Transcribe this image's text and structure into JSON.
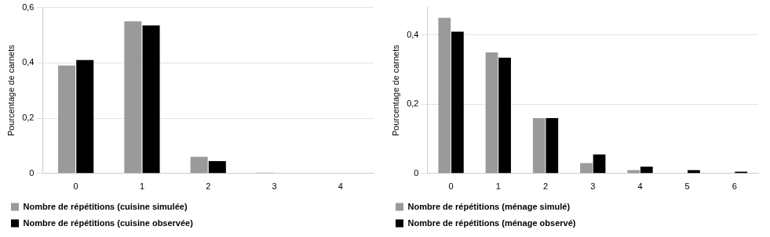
{
  "chart_data": [
    {
      "type": "bar",
      "y_label": "Pourcentage de carnets",
      "categories": [
        "0",
        "1",
        "2",
        "3",
        "4"
      ],
      "series": [
        {
          "name": "Nombre de répétitions (cuisine simulée)",
          "color": "#9a9a9a",
          "values": [
            0.39,
            0.55,
            0.06,
            0.003,
            0
          ]
        },
        {
          "name": "Nombre de répétitions (cuisine observée)",
          "color": "#000000",
          "values": [
            0.41,
            0.535,
            0.045,
            0,
            0
          ]
        }
      ],
      "ylim": [
        0,
        0.6
      ],
      "yticks": [
        0,
        {
          "value": 0.2,
          "label": "0,2"
        },
        {
          "value": 0.4,
          "label": "0,4"
        },
        {
          "value": 0.6,
          "label": "0,6"
        }
      ],
      "grid": true,
      "legend": "bottom"
    },
    {
      "type": "bar",
      "y_label": "Pourcentage de carnets",
      "categories": [
        "0",
        "1",
        "2",
        "3",
        "4",
        "5",
        "6"
      ],
      "series": [
        {
          "name": "Nombre de répétitions (ménage simulé)",
          "color": "#9a9a9a",
          "values": [
            0.45,
            0.35,
            0.16,
            0.03,
            0.01,
            0,
            0
          ]
        },
        {
          "name": "Nombre de répétitions (ménage observé)",
          "color": "#000000",
          "values": [
            0.41,
            0.335,
            0.16,
            0.055,
            0.02,
            0.01,
            0.005
          ]
        }
      ],
      "ylim": [
        0,
        0.48
      ],
      "yticks": [
        0,
        {
          "value": 0.2,
          "label": "0,2"
        },
        {
          "value": 0.4,
          "label": "0,4"
        }
      ],
      "grid": true,
      "legend": "bottom"
    }
  ]
}
